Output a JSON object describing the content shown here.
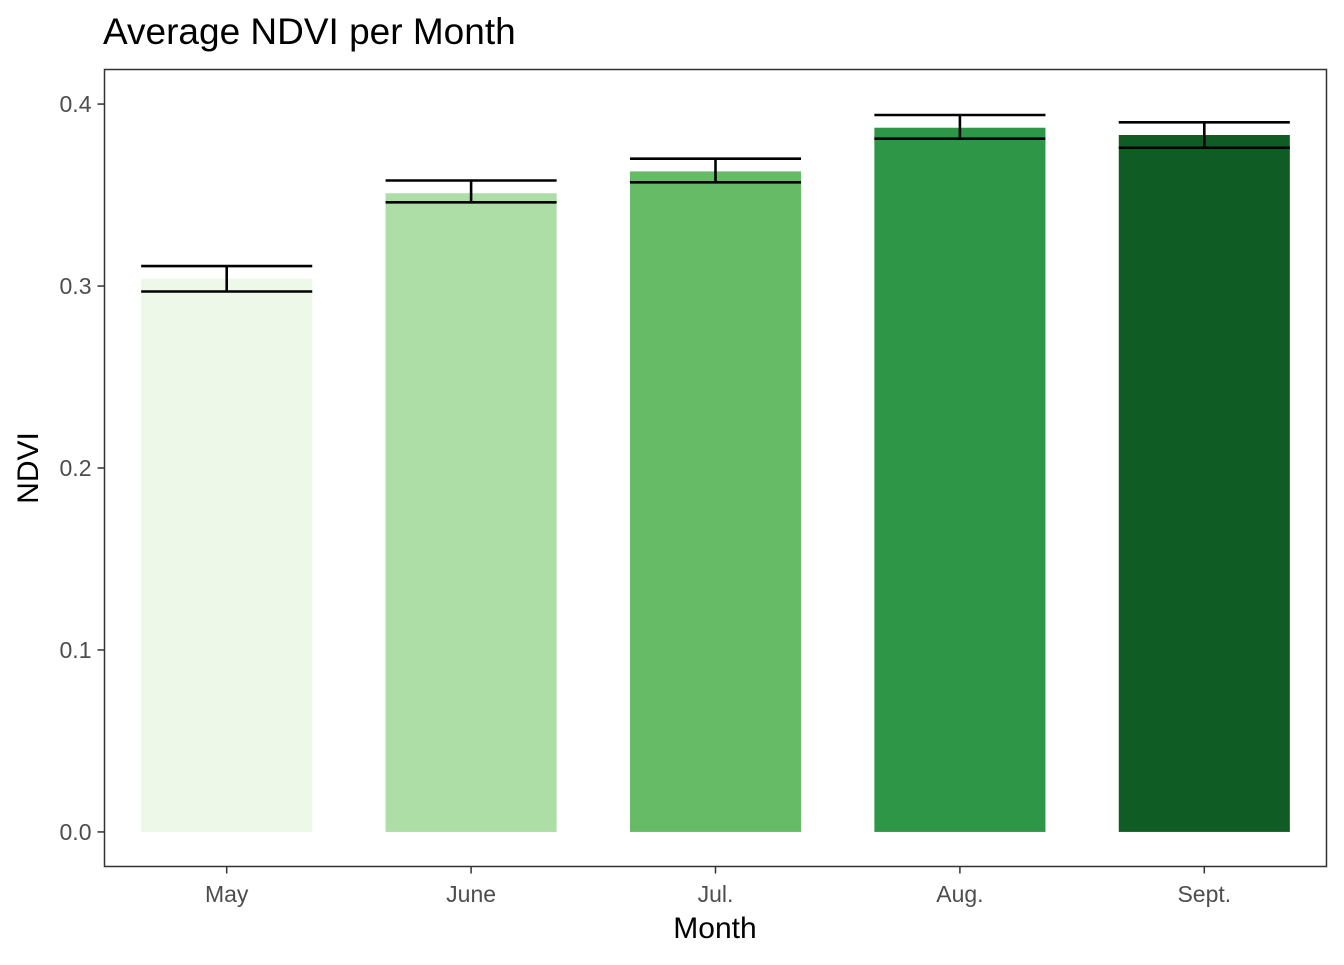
{
  "chart_data": {
    "type": "bar",
    "title": "Average NDVI per Month",
    "xlabel": "Month",
    "ylabel": "NDVI",
    "categories": [
      "May",
      "June",
      "Jul.",
      "Aug.",
      "Sept."
    ],
    "values": [
      0.304,
      0.351,
      0.363,
      0.387,
      0.383
    ],
    "error_low": [
      0.297,
      0.346,
      0.357,
      0.381,
      0.376
    ],
    "error_high": [
      0.311,
      0.358,
      0.37,
      0.394,
      0.39
    ],
    "bar_colors": [
      "#edf8e9",
      "#addea5",
      "#66bb66",
      "#2e9647",
      "#0f5c24"
    ],
    "ylim": [
      -0.019,
      0.419
    ],
    "yticks": [
      0.0,
      0.1,
      0.2,
      0.3,
      0.4
    ],
    "ytick_labels": [
      "0.0",
      "0.1",
      "0.2",
      "0.3",
      "0.4"
    ],
    "grid": false,
    "legend": "none",
    "panel_border_color": "#333333",
    "tick_color": "#333333",
    "errorbar_color": "#000000"
  }
}
